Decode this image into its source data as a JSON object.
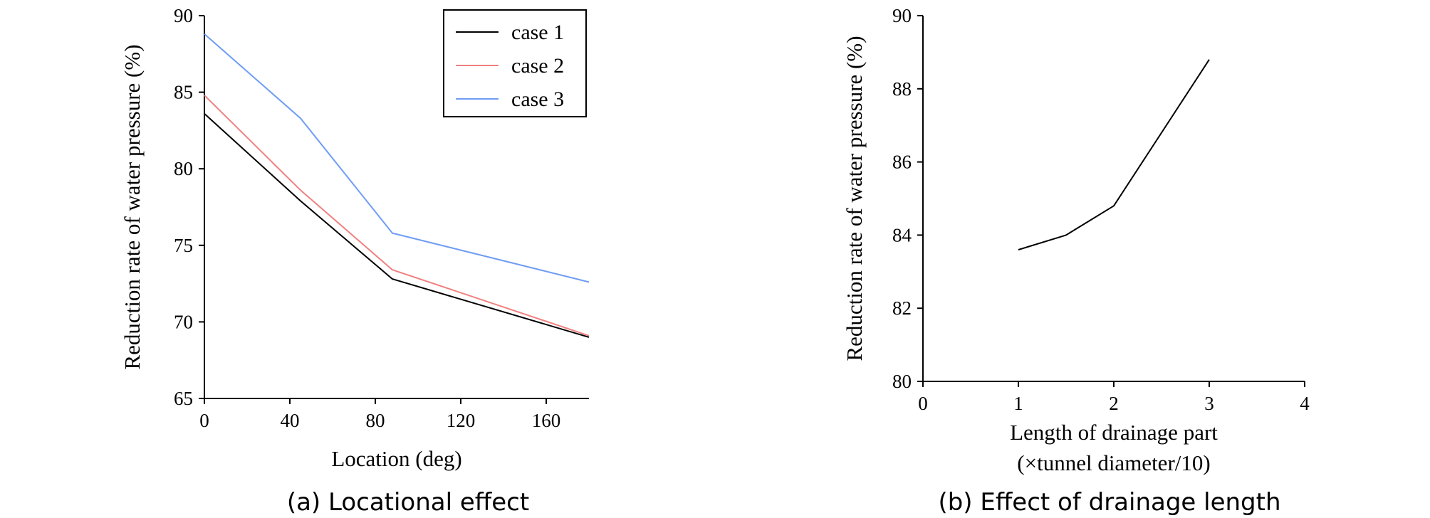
{
  "chart_data": [
    {
      "type": "line",
      "caption": "(a) Locational effect",
      "xlabel": "Location (deg)",
      "ylabel": "Reduction rate of water pressure (%)",
      "xlim": [
        0,
        180
      ],
      "ylim": [
        65,
        90
      ],
      "xticks": [
        0,
        40,
        80,
        120,
        160
      ],
      "yticks": [
        65,
        70,
        75,
        80,
        85,
        90
      ],
      "grid": false,
      "legend": "top-right",
      "series": [
        {
          "name": "case 1",
          "color": "#000000",
          "x": [
            0,
            45,
            88,
            180
          ],
          "y": [
            83.6,
            77.9,
            72.8,
            69.0
          ]
        },
        {
          "name": "case 2",
          "color": "#f08080",
          "x": [
            0,
            45,
            88,
            180
          ],
          "y": [
            84.8,
            78.6,
            73.4,
            69.1
          ]
        },
        {
          "name": "case 3",
          "color": "#6f9cf4",
          "x": [
            0,
            45,
            88,
            180
          ],
          "y": [
            88.8,
            83.3,
            75.8,
            72.6
          ]
        }
      ]
    },
    {
      "type": "line",
      "caption": "(b) Effect of drainage length",
      "xlabel": "Length of drainage part",
      "xlabel2": "(×tunnel diameter/10)",
      "ylabel": "Reduction rate of water pressure (%)",
      "xlim": [
        0,
        4
      ],
      "ylim": [
        80,
        90
      ],
      "xticks": [
        0,
        1,
        2,
        3,
        4
      ],
      "yticks": [
        80,
        82,
        84,
        86,
        88,
        90
      ],
      "grid": false,
      "series": [
        {
          "color": "#000000",
          "x": [
            1,
            1.5,
            2,
            3
          ],
          "y": [
            83.6,
            84.0,
            84.8,
            88.8
          ]
        }
      ]
    }
  ]
}
